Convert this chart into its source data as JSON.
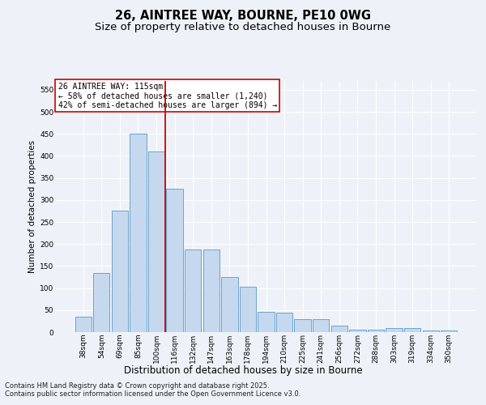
{
  "title": "26, AINTREE WAY, BOURNE, PE10 0WG",
  "subtitle": "Size of property relative to detached houses in Bourne",
  "xlabel": "Distribution of detached houses by size in Bourne",
  "ylabel": "Number of detached properties",
  "categories": [
    "38sqm",
    "54sqm",
    "69sqm",
    "85sqm",
    "100sqm",
    "116sqm",
    "132sqm",
    "147sqm",
    "163sqm",
    "178sqm",
    "194sqm",
    "210sqm",
    "225sqm",
    "241sqm",
    "256sqm",
    "272sqm",
    "288sqm",
    "303sqm",
    "319sqm",
    "334sqm",
    "350sqm"
  ],
  "values": [
    35,
    135,
    275,
    450,
    410,
    325,
    188,
    188,
    125,
    103,
    46,
    45,
    30,
    30,
    14,
    5,
    5,
    9,
    9,
    4,
    4
  ],
  "bar_color": "#c5d8ed",
  "bar_edge_color": "#5a9ac8",
  "vline_color": "#cc0000",
  "annotation_title": "26 AINTREE WAY: 115sqm",
  "annotation_line1": "← 58% of detached houses are smaller (1,240)",
  "annotation_line2": "42% of semi-detached houses are larger (894) →",
  "annotation_box_color": "#ffffff",
  "annotation_box_edge": "#cc0000",
  "ylim": [
    0,
    570
  ],
  "yticks": [
    0,
    50,
    100,
    150,
    200,
    250,
    300,
    350,
    400,
    450,
    500,
    550
  ],
  "background_color": "#eef2f8",
  "grid_color": "#ffffff",
  "footer1": "Contains HM Land Registry data © Crown copyright and database right 2025.",
  "footer2": "Contains public sector information licensed under the Open Government Licence v3.0.",
  "title_fontsize": 10.5,
  "subtitle_fontsize": 9.5,
  "xlabel_fontsize": 8.5,
  "ylabel_fontsize": 7.5,
  "tick_fontsize": 6.5,
  "annotation_fontsize": 7.0,
  "footer_fontsize": 6.0
}
